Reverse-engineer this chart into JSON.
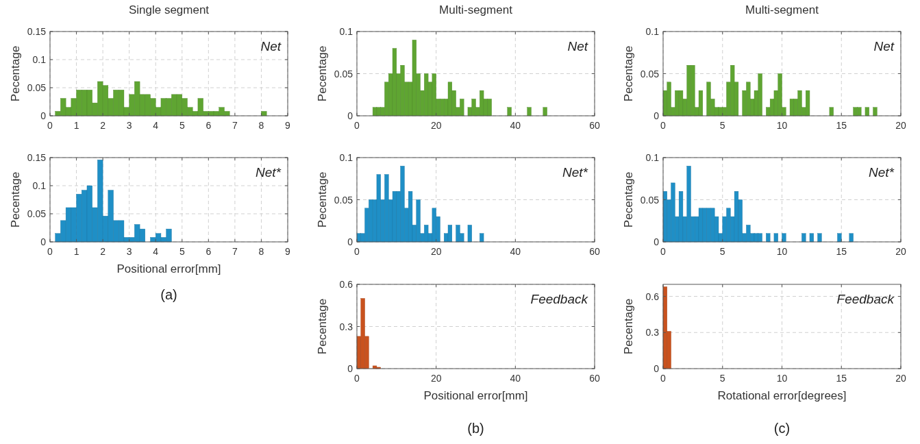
{
  "chart_data": [
    {
      "type": "histogram",
      "title": "Single segment",
      "ylabel": "Pecentage",
      "annotations": [
        "Net"
      ],
      "color": "#5fa532",
      "grid": true,
      "xlim": [
        0,
        9
      ],
      "xticks": [
        0,
        1,
        2,
        3,
        4,
        5,
        6,
        7,
        8,
        9
      ],
      "ylim": [
        0,
        0.15
      ],
      "yticks": [
        0,
        0.05,
        0.1,
        0.15
      ],
      "bins": [
        0.2,
        0.4,
        0.6,
        0.8,
        1,
        1.2,
        1.4,
        1.6,
        1.8,
        2,
        2.2,
        2.4,
        2.6,
        2.8,
        3,
        3.2,
        3.4,
        3.6,
        3.8,
        4,
        4.2,
        4.4,
        4.6,
        4.8,
        5,
        5.2,
        5.4,
        5.6,
        5.8,
        6,
        6.2,
        6.4,
        6.6,
        6.8,
        7,
        7.2,
        7.4,
        7.6,
        7.8,
        8,
        8.2
      ],
      "values": [
        0.008,
        0.031,
        0.015,
        0.031,
        0.046,
        0.046,
        0.046,
        0.023,
        0.061,
        0.054,
        0.031,
        0.046,
        0.046,
        0.015,
        0.038,
        0.061,
        0.038,
        0.038,
        0.031,
        0.015,
        0.031,
        0.031,
        0.038,
        0.038,
        0.031,
        0.015,
        0.008,
        0.031,
        0.008,
        0.008,
        0.008,
        0.015,
        0.008,
        0,
        0,
        0,
        0,
        0,
        0,
        0.008
      ]
    },
    {
      "type": "histogram",
      "title": "Multi-segment",
      "ylabel": "Pecentage",
      "annotations": [
        "Net"
      ],
      "color": "#5fa532",
      "grid": true,
      "xlim": [
        0,
        60
      ],
      "xticks": [
        0,
        20,
        40,
        60
      ],
      "ylim": [
        0,
        0.1
      ],
      "yticks": [
        0,
        0.05,
        0.1
      ],
      "bins": [
        4,
        5,
        6,
        7,
        8,
        9,
        10,
        11,
        12,
        13,
        14,
        15,
        16,
        17,
        18,
        19,
        20,
        21,
        22,
        23,
        24,
        25,
        26,
        27,
        28,
        29,
        30,
        31,
        32,
        33,
        34,
        35,
        36,
        37,
        38,
        39,
        40,
        41,
        42,
        43,
        44,
        45,
        46,
        47,
        48
      ],
      "values": [
        0.01,
        0.01,
        0.01,
        0.04,
        0.05,
        0.08,
        0.05,
        0.06,
        0.04,
        0.04,
        0.09,
        0.05,
        0.03,
        0.05,
        0.04,
        0.05,
        0.02,
        0.02,
        0.02,
        0.04,
        0.03,
        0.01,
        0.02,
        0,
        0.01,
        0.02,
        0.01,
        0.03,
        0.02,
        0.02,
        0,
        0,
        0,
        0,
        0.01,
        0,
        0,
        0,
        0,
        0.01,
        0,
        0,
        0,
        0.01
      ]
    },
    {
      "type": "histogram",
      "title": "Multi-segment",
      "ylabel": "Pecentage",
      "annotations": [
        "Net"
      ],
      "color": "#5fa532",
      "grid": true,
      "xlim": [
        0,
        20
      ],
      "xticks": [
        0,
        5,
        10,
        15,
        20
      ],
      "ylim": [
        0,
        0.1
      ],
      "yticks": [
        0,
        0.05,
        0.1
      ],
      "bins": [
        0,
        0.333,
        0.667,
        1,
        1.333,
        1.667,
        2,
        2.333,
        2.667,
        3,
        3.333,
        3.667,
        4,
        4.333,
        4.667,
        5,
        5.333,
        5.667,
        6,
        6.333,
        6.667,
        7,
        7.333,
        7.667,
        8,
        8.333,
        8.667,
        9,
        9.333,
        9.667,
        10,
        10.333,
        10.667,
        11,
        11.333,
        11.667,
        12,
        12.333,
        12.667,
        13,
        13.333,
        13.667,
        14,
        14.333,
        14.667,
        15,
        15.333,
        15.667,
        16,
        16.333,
        16.667,
        17,
        17.333,
        17.667,
        18
      ],
      "values": [
        0.03,
        0.04,
        0.01,
        0.03,
        0.03,
        0.02,
        0.06,
        0.06,
        0.01,
        0.03,
        0,
        0.04,
        0.02,
        0.01,
        0.01,
        0.01,
        0.04,
        0.06,
        0.04,
        0,
        0.03,
        0.04,
        0.02,
        0.03,
        0.05,
        0,
        0.01,
        0.02,
        0.03,
        0.05,
        0.01,
        0,
        0.02,
        0.02,
        0.03,
        0.01,
        0.03,
        0,
        0,
        0,
        0,
        0,
        0.01,
        0,
        0,
        0,
        0,
        0,
        0.01,
        0.01,
        0,
        0.01,
        0,
        0.01
      ]
    },
    {
      "type": "histogram",
      "xlabel": "Positional error[mm]",
      "ylabel": "Pecentage",
      "annotations": [
        "Net*",
        "(a)"
      ],
      "color": "#1f8fc6",
      "grid": true,
      "xlim": [
        0,
        9
      ],
      "xticks": [
        0,
        1,
        2,
        3,
        4,
        5,
        6,
        7,
        8,
        9
      ],
      "ylim": [
        0,
        0.15
      ],
      "yticks": [
        0,
        0.05,
        0.1,
        0.15
      ],
      "bins": [
        0.2,
        0.4,
        0.6,
        0.8,
        1,
        1.2,
        1.4,
        1.6,
        1.8,
        2,
        2.2,
        2.4,
        2.6,
        2.8,
        3,
        3.2,
        3.4,
        3.6,
        3.8,
        4,
        4.2,
        4.4,
        4.6
      ],
      "values": [
        0.015,
        0.038,
        0.061,
        0.061,
        0.085,
        0.092,
        0.1,
        0.061,
        0.146,
        0.046,
        0.092,
        0.038,
        0.038,
        0.008,
        0.008,
        0.031,
        0.023,
        0,
        0.008,
        0.015,
        0.008,
        0.023
      ]
    },
    {
      "type": "histogram",
      "ylabel": "Pecentage",
      "annotations": [
        "Net*"
      ],
      "color": "#1f8fc6",
      "grid": true,
      "xlim": [
        0,
        60
      ],
      "xticks": [
        0,
        20,
        40,
        60
      ],
      "ylim": [
        0,
        0.1
      ],
      "yticks": [
        0,
        0.05,
        0.1
      ],
      "bins": [
        0,
        1,
        2,
        3,
        4,
        5,
        6,
        7,
        8,
        9,
        10,
        11,
        12,
        13,
        14,
        15,
        16,
        17,
        18,
        19,
        20,
        21,
        22,
        23,
        24,
        25,
        26,
        27,
        28,
        29,
        30,
        31,
        32
      ],
      "values": [
        0.01,
        0.01,
        0.04,
        0.05,
        0.05,
        0.08,
        0.05,
        0.08,
        0.05,
        0.06,
        0.06,
        0.09,
        0.04,
        0.06,
        0.02,
        0.05,
        0.01,
        0.02,
        0.01,
        0.04,
        0.03,
        0,
        0.01,
        0.02,
        0,
        0.02,
        0.01,
        0,
        0.02,
        0,
        0,
        0.01
      ]
    },
    {
      "type": "histogram",
      "ylabel": "Pecentage",
      "annotations": [
        "Net*"
      ],
      "color": "#1f8fc6",
      "grid": true,
      "xlim": [
        0,
        20
      ],
      "xticks": [
        0,
        5,
        10,
        15,
        20
      ],
      "ylim": [
        0,
        0.1
      ],
      "yticks": [
        0,
        0.05,
        0.1
      ],
      "bins": [
        0,
        0.333,
        0.667,
        1,
        1.333,
        1.667,
        2,
        2.333,
        2.667,
        3,
        3.333,
        3.667,
        4,
        4.333,
        4.667,
        5,
        5.333,
        5.667,
        6,
        6.333,
        6.667,
        7,
        7.333,
        7.667,
        8,
        8.333,
        8.667,
        9,
        9.333,
        9.667,
        10,
        10.333,
        10.667,
        11,
        11.333,
        11.667,
        12,
        12.333,
        12.667,
        13,
        13.333,
        13.667,
        14,
        14.333,
        14.667,
        15,
        15.333,
        15.667,
        16
      ],
      "values": [
        0.06,
        0.05,
        0.07,
        0.03,
        0.06,
        0.03,
        0.09,
        0.03,
        0.03,
        0.04,
        0.04,
        0.04,
        0.04,
        0.03,
        0.01,
        0.03,
        0.04,
        0.03,
        0.06,
        0.05,
        0.01,
        0.02,
        0.01,
        0.01,
        0.01,
        0,
        0.01,
        0,
        0.01,
        0,
        0.01,
        0,
        0,
        0,
        0,
        0.01,
        0,
        0.01,
        0,
        0.01,
        0,
        0,
        0,
        0,
        0.01,
        0,
        0,
        0.01
      ]
    },
    {
      "type": "histogram",
      "xlabel": "Positional error[mm]",
      "ylabel": "Pecentage",
      "annotations": [
        "Feedback",
        "(b)"
      ],
      "color": "#c9521e",
      "grid": true,
      "xlim": [
        0,
        60
      ],
      "xticks": [
        0,
        20,
        40,
        60
      ],
      "ylim": [
        0,
        0.6
      ],
      "yticks": [
        0,
        0.3,
        0.6
      ],
      "bins": [
        0,
        1,
        2,
        3,
        4,
        5,
        6
      ],
      "values": [
        0.23,
        0.5,
        0.23,
        0,
        0.02,
        0.01
      ]
    },
    {
      "type": "histogram",
      "xlabel": "Rotational error[degrees]",
      "ylabel": "Pecentage",
      "annotations": [
        "Feedback",
        "(c)"
      ],
      "color": "#c9521e",
      "grid": true,
      "xlim": [
        0,
        20
      ],
      "xticks": [
        0,
        5,
        10,
        15,
        20
      ],
      "ylim": [
        0,
        0.7
      ],
      "yticks": [
        0,
        0.3,
        0.6
      ],
      "bins": [
        0,
        0.333,
        0.667
      ],
      "values": [
        0.68,
        0.31
      ]
    }
  ]
}
